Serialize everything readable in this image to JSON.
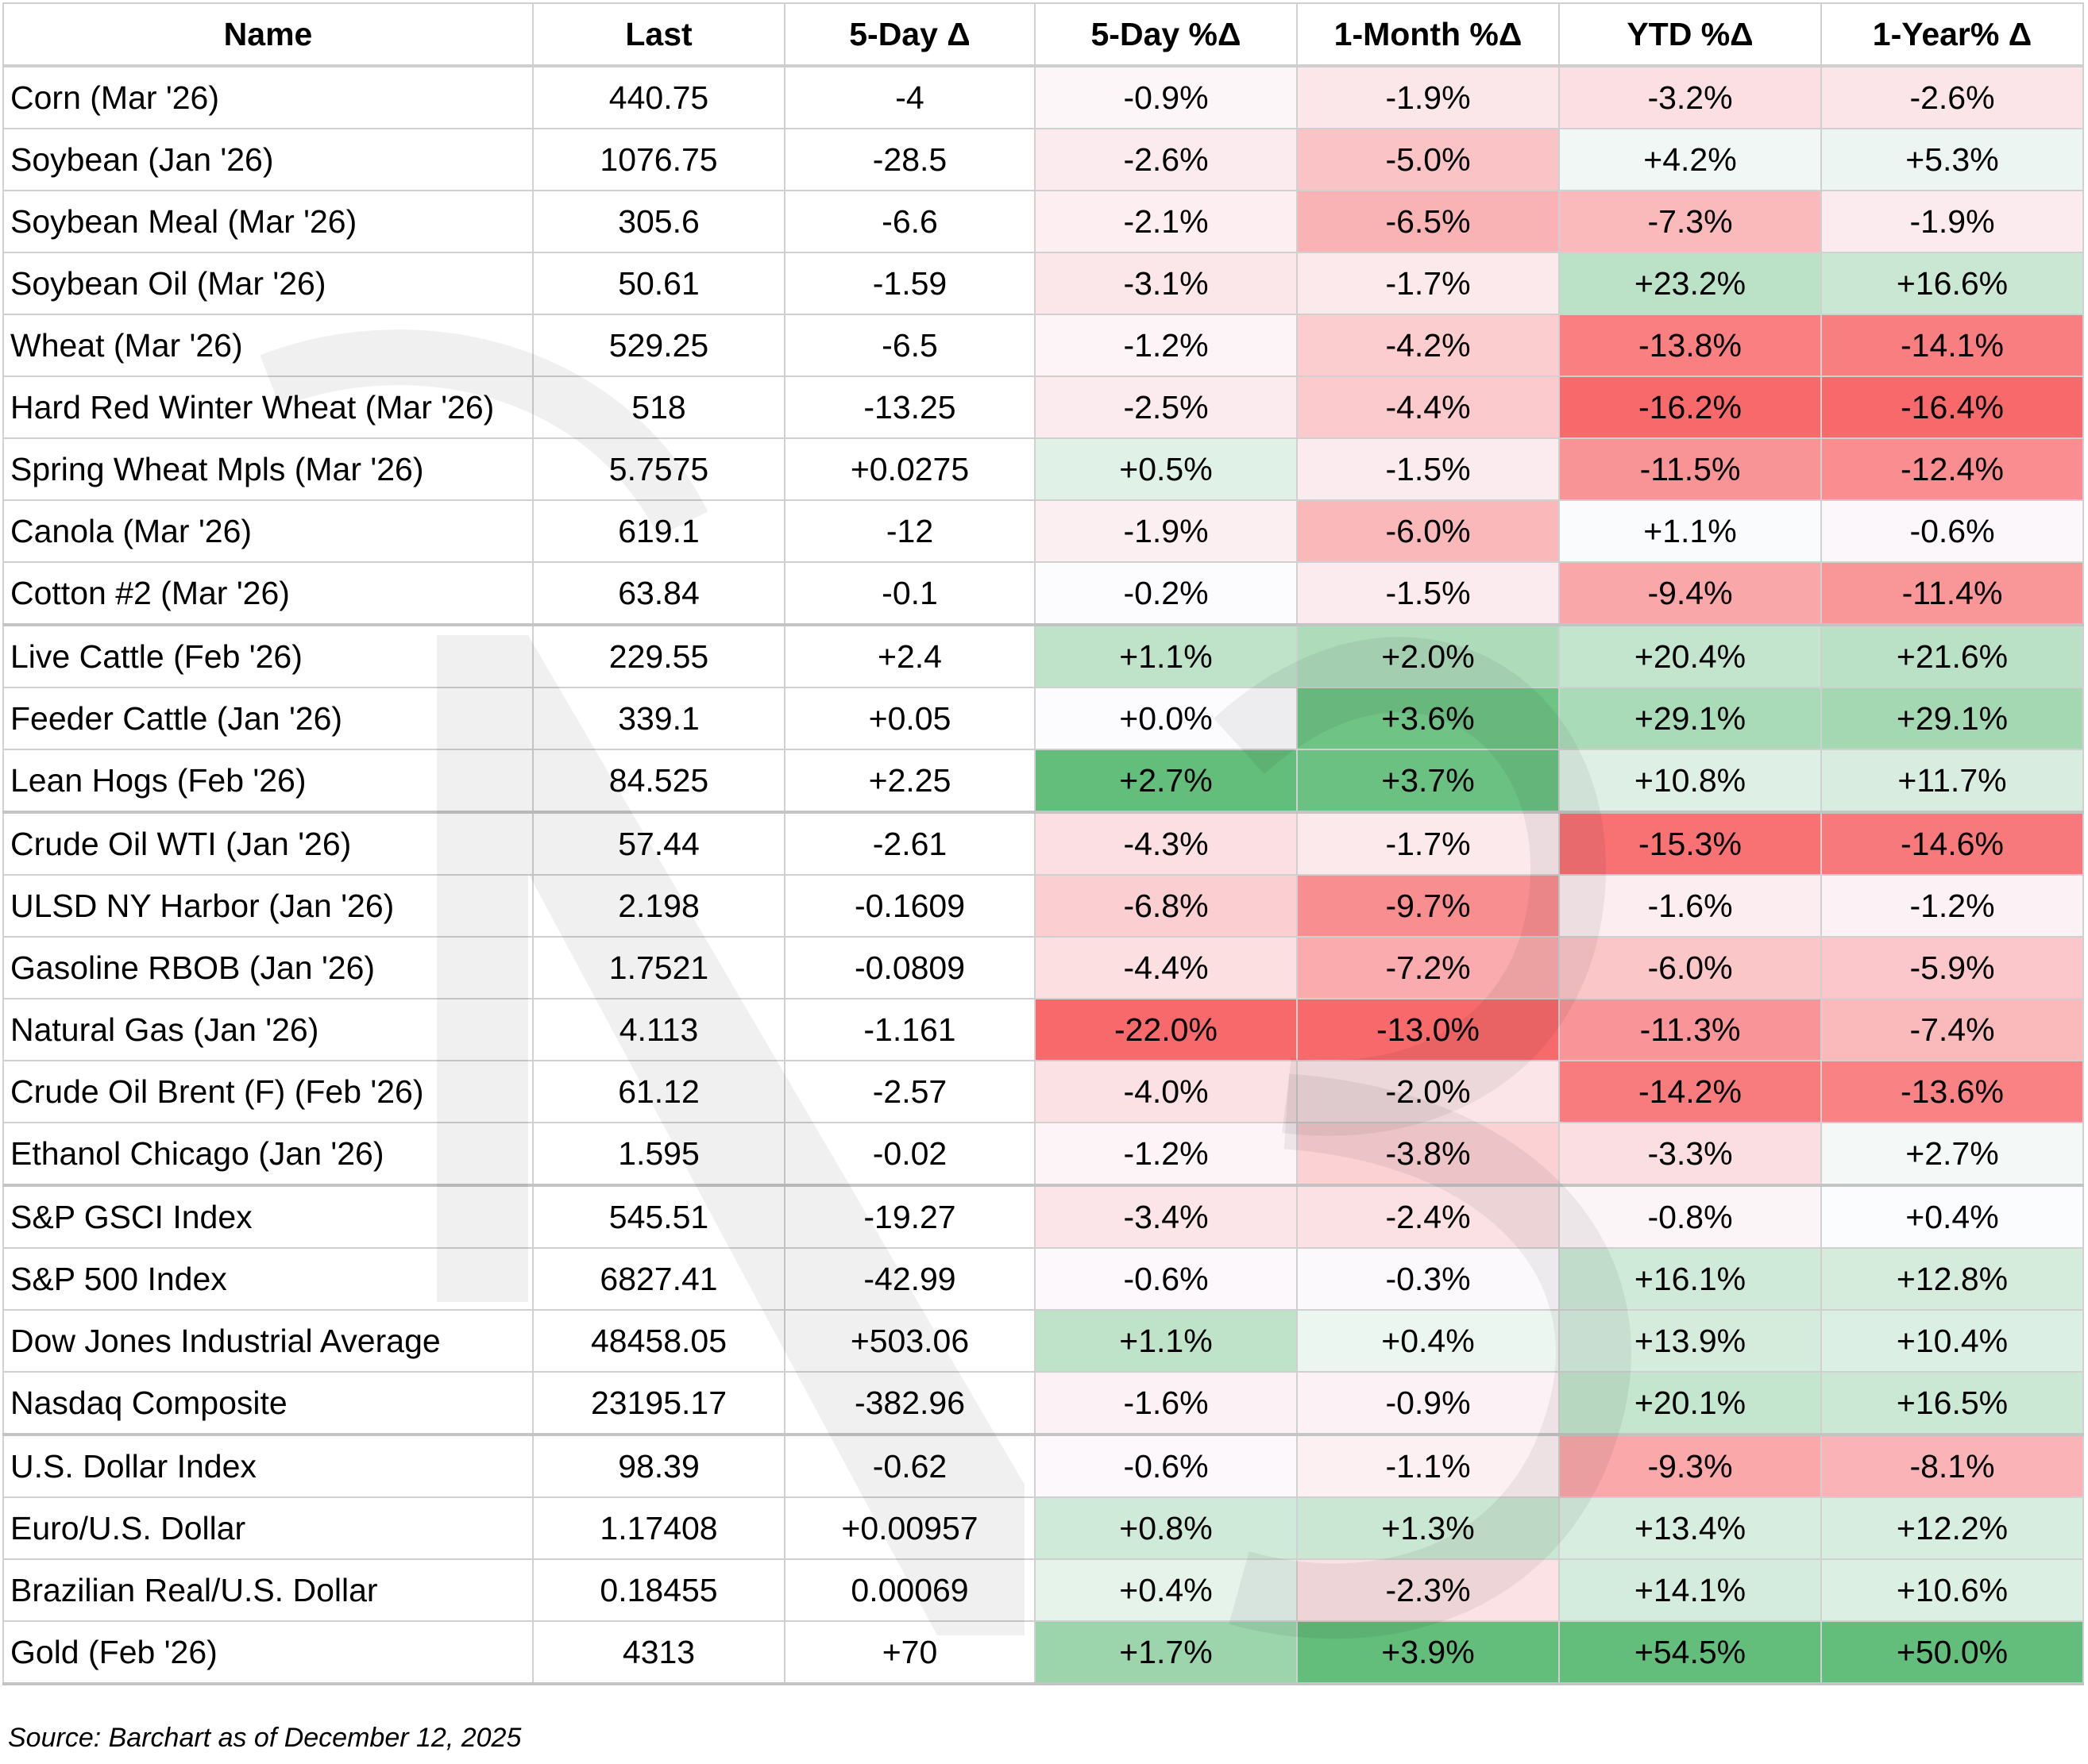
{
  "columns": [
    "Name",
    "Last",
    "5-Day Δ",
    "5-Day %Δ",
    "1-Month %Δ",
    "YTD %Δ",
    "1-Year% Δ"
  ],
  "rows": [
    {
      "name": "Corn (Mar '26)",
      "last": "440.75",
      "d5": "-4",
      "p5": "-0.9%",
      "m1": "-1.9%",
      "ytd": "-3.2%",
      "y1": "-2.6%"
    },
    {
      "name": "Soybean (Jan '26)",
      "last": "1076.75",
      "d5": "-28.5",
      "p5": "-2.6%",
      "m1": "-5.0%",
      "ytd": "+4.2%",
      "y1": "+5.3%"
    },
    {
      "name": "Soybean Meal (Mar '26)",
      "last": "305.6",
      "d5": "-6.6",
      "p5": "-2.1%",
      "m1": "-6.5%",
      "ytd": "-7.3%",
      "y1": "-1.9%"
    },
    {
      "name": "Soybean Oil (Mar '26)",
      "last": "50.61",
      "d5": "-1.59",
      "p5": "-3.1%",
      "m1": "-1.7%",
      "ytd": "+23.2%",
      "y1": "+16.6%"
    },
    {
      "name": "Wheat (Mar '26)",
      "last": "529.25",
      "d5": "-6.5",
      "p5": "-1.2%",
      "m1": "-4.2%",
      "ytd": "-13.8%",
      "y1": "-14.1%"
    },
    {
      "name": "Hard Red Winter Wheat (Mar '26)",
      "last": "518",
      "d5": "-13.25",
      "p5": "-2.5%",
      "m1": "-4.4%",
      "ytd": "-16.2%",
      "y1": "-16.4%"
    },
    {
      "name": "Spring Wheat Mpls (Mar '26)",
      "last": "5.7575",
      "d5": "+0.0275",
      "p5": "+0.5%",
      "m1": "-1.5%",
      "ytd": "-11.5%",
      "y1": "-12.4%"
    },
    {
      "name": "Canola (Mar '26)",
      "last": "619.1",
      "d5": "-12",
      "p5": "-1.9%",
      "m1": "-6.0%",
      "ytd": "+1.1%",
      "y1": "-0.6%"
    },
    {
      "name": "Cotton #2 (Mar '26)",
      "last": "63.84",
      "d5": "-0.1",
      "p5": "-0.2%",
      "m1": "-1.5%",
      "ytd": "-9.4%",
      "y1": "-11.4%"
    },
    {
      "name": "Live Cattle (Feb '26)",
      "last": "229.55",
      "d5": "+2.4",
      "p5": "+1.1%",
      "m1": "+2.0%",
      "ytd": "+20.4%",
      "y1": "+21.6%"
    },
    {
      "name": "Feeder Cattle (Jan '26)",
      "last": "339.1",
      "d5": "+0.05",
      "p5": "+0.0%",
      "m1": "+3.6%",
      "ytd": "+29.1%",
      "y1": "+29.1%"
    },
    {
      "name": "Lean Hogs (Feb '26)",
      "last": "84.525",
      "d5": "+2.25",
      "p5": "+2.7%",
      "m1": "+3.7%",
      "ytd": "+10.8%",
      "y1": "+11.7%"
    },
    {
      "name": "Crude Oil WTI (Jan '26)",
      "last": "57.44",
      "d5": "-2.61",
      "p5": "-4.3%",
      "m1": "-1.7%",
      "ytd": "-15.3%",
      "y1": "-14.6%"
    },
    {
      "name": "ULSD NY Harbor (Jan '26)",
      "last": "2.198",
      "d5": "-0.1609",
      "p5": "-6.8%",
      "m1": "-9.7%",
      "ytd": "-1.6%",
      "y1": "-1.2%"
    },
    {
      "name": "Gasoline RBOB (Jan '26)",
      "last": "1.7521",
      "d5": "-0.0809",
      "p5": "-4.4%",
      "m1": "-7.2%",
      "ytd": "-6.0%",
      "y1": "-5.9%"
    },
    {
      "name": "Natural Gas (Jan '26)",
      "last": "4.113",
      "d5": "-1.161",
      "p5": "-22.0%",
      "m1": "-13.0%",
      "ytd": "-11.3%",
      "y1": "-7.4%"
    },
    {
      "name": "Crude Oil Brent (F) (Feb '26)",
      "last": "61.12",
      "d5": "-2.57",
      "p5": "-4.0%",
      "m1": "-2.0%",
      "ytd": "-14.2%",
      "y1": "-13.6%"
    },
    {
      "name": "Ethanol Chicago (Jan '26)",
      "last": "1.595",
      "d5": "-0.02",
      "p5": "-1.2%",
      "m1": "-3.8%",
      "ytd": "-3.3%",
      "y1": "+2.7%"
    },
    {
      "name": "S&P GSCI Index",
      "last": "545.51",
      "d5": "-19.27",
      "p5": "-3.4%",
      "m1": "-2.4%",
      "ytd": "-0.8%",
      "y1": "+0.4%"
    },
    {
      "name": "S&P 500 Index",
      "last": "6827.41",
      "d5": "-42.99",
      "p5": "-0.6%",
      "m1": "-0.3%",
      "ytd": "+16.1%",
      "y1": "+12.8%"
    },
    {
      "name": "Dow Jones Industrial Average",
      "last": "48458.05",
      "d5": "+503.06",
      "p5": "+1.1%",
      "m1": "+0.4%",
      "ytd": "+13.9%",
      "y1": "+10.4%"
    },
    {
      "name": "Nasdaq Composite",
      "last": "23195.17",
      "d5": "-382.96",
      "p5": "-1.6%",
      "m1": "-0.9%",
      "ytd": "+20.1%",
      "y1": "+16.5%"
    },
    {
      "name": "U.S. Dollar Index",
      "last": "98.39",
      "d5": "-0.62",
      "p5": "-0.6%",
      "m1": "-1.1%",
      "ytd": "-9.3%",
      "y1": "-8.1%"
    },
    {
      "name": "Euro/U.S. Dollar",
      "last": "1.17408",
      "d5": "+0.00957",
      "p5": "+0.8%",
      "m1": "+1.3%",
      "ytd": "+13.4%",
      "y1": "+12.2%"
    },
    {
      "name": "Brazilian Real/U.S. Dollar",
      "last": "0.18455",
      "d5": "0.00069",
      "p5": "+0.4%",
      "m1": "-2.3%",
      "ytd": "+14.1%",
      "y1": "+10.6%"
    },
    {
      "name": "Gold (Feb '26)",
      "last": "4313",
      "d5": "+70",
      "p5": "+1.7%",
      "m1": "+3.9%",
      "ytd": "+54.5%",
      "y1": "+50.0%"
    }
  ],
  "heatmap_colors": {
    "red_strong": "#f8696b",
    "green_strong": "#63be7b",
    "neutral": "#fcfcff"
  },
  "source": "Source: Barchart as of December 12, 2025"
}
